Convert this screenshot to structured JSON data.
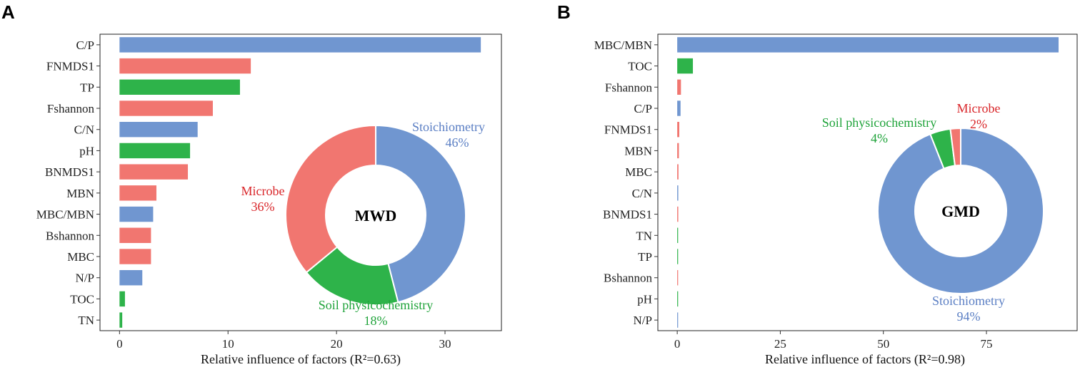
{
  "colors": {
    "Stoichiometry": "#7096D0",
    "Microbe": "#F17670",
    "Soil physicochemistry": "#2EB34A"
  },
  "label_colors": {
    "Stoichiometry": "#5B7FC4",
    "Microbe": "#D9262A",
    "Soil physicochemistry": "#1FA33A"
  },
  "chart_data": [
    {
      "panel": "A",
      "type": "bar",
      "orientation": "horizontal",
      "xlabel": "Relative influence of factors (R²=0.63)",
      "xlim": [
        -1.8,
        35.2
      ],
      "xticks": [
        0,
        10,
        20,
        30
      ],
      "bars": [
        {
          "label": "C/P",
          "value": 33.3,
          "group": "Stoichiometry"
        },
        {
          "label": "FNMDS1",
          "value": 12.1,
          "group": "Microbe"
        },
        {
          "label": "TP",
          "value": 11.1,
          "group": "Soil physicochemistry"
        },
        {
          "label": "Fshannon",
          "value": 8.6,
          "group": "Microbe"
        },
        {
          "label": "C/N",
          "value": 7.2,
          "group": "Stoichiometry"
        },
        {
          "label": "pH",
          "value": 6.5,
          "group": "Soil physicochemistry"
        },
        {
          "label": "BNMDS1",
          "value": 6.3,
          "group": "Microbe"
        },
        {
          "label": "MBN",
          "value": 3.4,
          "group": "Microbe"
        },
        {
          "label": "MBC/MBN",
          "value": 3.1,
          "group": "Stoichiometry"
        },
        {
          "label": "Bshannon",
          "value": 2.9,
          "group": "Microbe"
        },
        {
          "label": "MBC",
          "value": 2.9,
          "group": "Microbe"
        },
        {
          "label": "N/P",
          "value": 2.1,
          "group": "Stoichiometry"
        },
        {
          "label": "TOC",
          "value": 0.5,
          "group": "Soil physicochemistry"
        },
        {
          "label": "TN",
          "value": 0.25,
          "group": "Soil physicochemistry"
        }
      ],
      "donut": {
        "center_label": "MWD",
        "slices": [
          {
            "name": "Stoichiometry",
            "value": 46,
            "label": "Stoichiometry",
            "pct": "46%"
          },
          {
            "name": "Soil physicochemistry",
            "value": 18,
            "label": "Soil physicochemistry",
            "pct": "18%"
          },
          {
            "name": "Microbe",
            "value": 36,
            "label": "Microbe",
            "pct": "36%"
          }
        ]
      }
    },
    {
      "panel": "B",
      "type": "bar",
      "orientation": "horizontal",
      "xlabel": "Relative influence of factors (R²=0.98)",
      "xlim": [
        -4.7,
        97
      ],
      "xticks": [
        0,
        25,
        50,
        75
      ],
      "bars": [
        {
          "label": "MBC/MBN",
          "value": 92.5,
          "group": "Stoichiometry"
        },
        {
          "label": "TOC",
          "value": 3.8,
          "group": "Soil physicochemistry"
        },
        {
          "label": "Fshannon",
          "value": 0.9,
          "group": "Microbe"
        },
        {
          "label": "C/P",
          "value": 0.8,
          "group": "Stoichiometry"
        },
        {
          "label": "FNMDS1",
          "value": 0.5,
          "group": "Microbe"
        },
        {
          "label": "MBN",
          "value": 0.4,
          "group": "Microbe"
        },
        {
          "label": "MBC",
          "value": 0.3,
          "group": "Microbe"
        },
        {
          "label": "C/N",
          "value": 0.25,
          "group": "Stoichiometry"
        },
        {
          "label": "BNMDS1",
          "value": 0.25,
          "group": "Microbe"
        },
        {
          "label": "TN",
          "value": 0.2,
          "group": "Soil physicochemistry"
        },
        {
          "label": "TP",
          "value": 0.2,
          "group": "Soil physicochemistry"
        },
        {
          "label": "Bshannon",
          "value": 0.2,
          "group": "Microbe"
        },
        {
          "label": "pH",
          "value": 0.15,
          "group": "Soil physicochemistry"
        },
        {
          "label": "N/P",
          "value": 0.1,
          "group": "Stoichiometry"
        }
      ],
      "donut": {
        "center_label": "GMD",
        "slices": [
          {
            "name": "Stoichiometry",
            "value": 94,
            "label": "Stoichiometry",
            "pct": "94%"
          },
          {
            "name": "Soil physicochemistry",
            "value": 4,
            "label": "Soil physicochemistry",
            "pct": "4%"
          },
          {
            "name": "Microbe",
            "value": 2,
            "label": "Microbe",
            "pct": "2%"
          }
        ]
      }
    }
  ]
}
